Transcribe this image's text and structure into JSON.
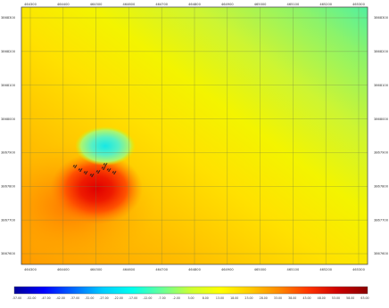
{
  "map": {
    "x_ticks": [
      "464300",
      "464400",
      "464500",
      "464600",
      "464700",
      "464800",
      "464900",
      "465000",
      "465100",
      "465200",
      "465300"
    ],
    "y_ticks": [
      "3868300",
      "3868200",
      "3868100",
      "3868000",
      "3867900",
      "3867800",
      "3867700",
      "3867600"
    ],
    "grid": true
  },
  "legend": {
    "colors": [
      "#00009a",
      "#0000ff",
      "#0066ff",
      "#00ccff",
      "#00ffee",
      "#66ff99",
      "#ccff33",
      "#ffff00",
      "#ffcc00",
      "#ff8800",
      "#ff3300",
      "#cc0000",
      "#8a0000"
    ],
    "tick_labels": [
      "-57.00",
      "-52.00",
      "-47.00",
      "-42.00",
      "-37.00",
      "-32.00",
      "-27.00",
      "-22.00",
      "-17.00",
      "-12.00",
      "-7.00",
      "-2.00",
      "3.00",
      "8.00",
      "13.00",
      "18.00",
      "23.00",
      "28.00",
      "33.00",
      "38.00",
      "43.00",
      "48.00",
      "53.00",
      "58.00",
      "63.00"
    ]
  },
  "colors": {
    "background": "#ffffff",
    "grid_line": "#6f7a4a",
    "frame": "#4a4a4a",
    "marker": "#1a1a1a"
  },
  "icons": {
    "station_marker": "survey-station-icon"
  }
}
